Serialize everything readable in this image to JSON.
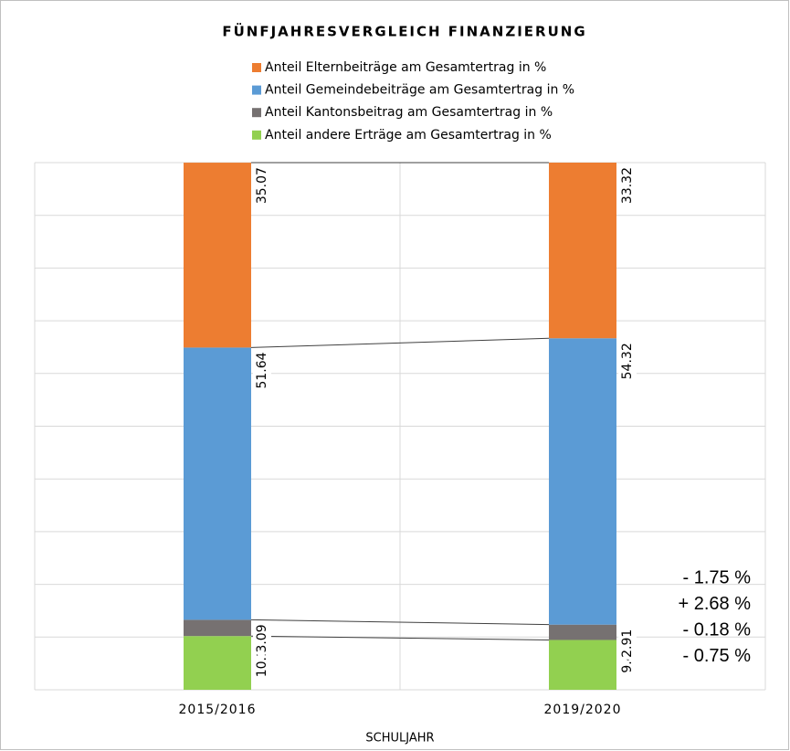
{
  "chart_data": {
    "type": "stacked_bar",
    "title": "FÜNFJAHRESVERGLEICH FINANZIERUNG",
    "x_label": "SCHULJAHR",
    "categories": [
      "2015/2016",
      "2019/2020"
    ],
    "series": [
      {
        "name": "Anteil Elternbeiträge am Gesamtertrag in %",
        "color": "#ed7d31",
        "values": [
          35.07,
          33.32
        ]
      },
      {
        "name": "Anteil Gemeindebeiträge am Gesamtertrag in %",
        "color": "#5b9bd5",
        "values": [
          51.64,
          54.32
        ]
      },
      {
        "name": "Anteil Kantonsbeitrag am Gesamtertrag in %",
        "color": "#767171",
        "values": [
          3.09,
          2.91
        ]
      },
      {
        "name": "Anteil andere Erträge am Gesamtertrag in %",
        "color": "#92d050",
        "values": [
          10.19,
          9.45
        ]
      }
    ],
    "annotations": [
      {
        "text": "-  1.75 %",
        "color": "#ed7d31"
      },
      {
        "text": "+ 2.68 %",
        "color": "#5b9bd5"
      },
      {
        "text": "-  0.18 %",
        "color": "#767171"
      },
      {
        "text": "- 0.75 %",
        "color": "#92d050"
      }
    ],
    "ylim": [
      0,
      100
    ],
    "yticks": [
      0,
      10,
      20,
      30,
      40,
      50,
      60,
      70,
      80,
      90,
      100
    ],
    "grid": true
  }
}
